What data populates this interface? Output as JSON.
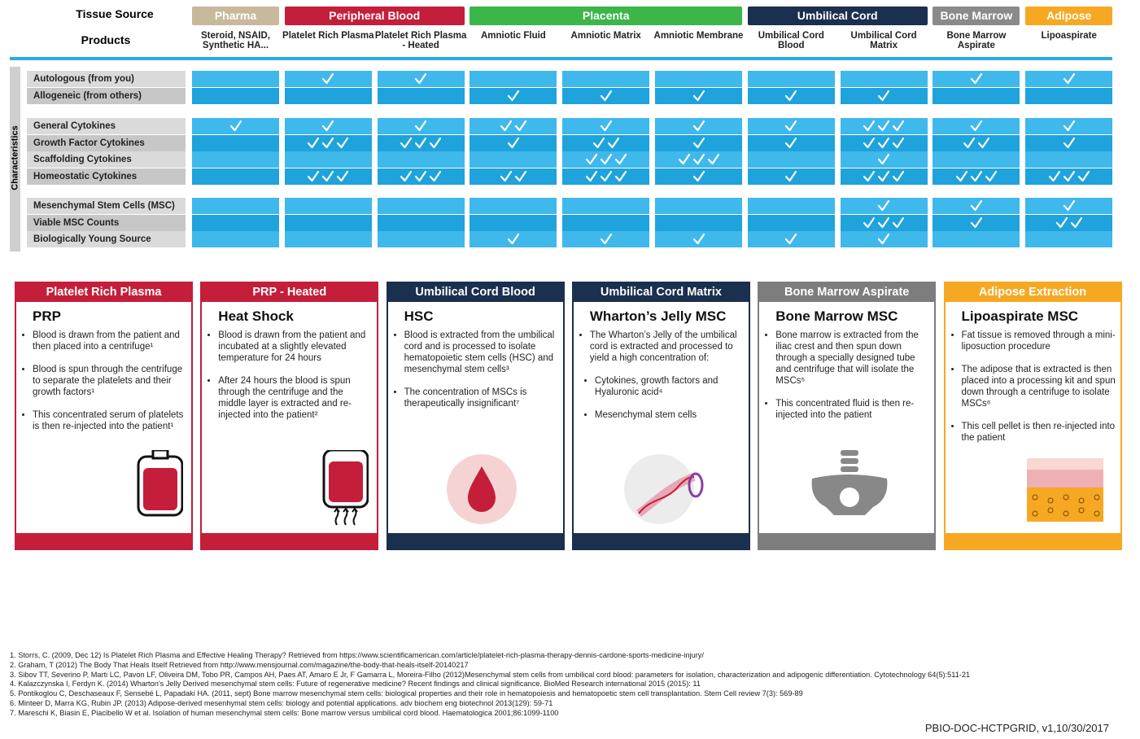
{
  "header": {
    "tissue_source_label": "Tissue Source",
    "products_label": "Products",
    "characteristics_label": "Characteristics"
  },
  "tissue_sources": [
    {
      "name": "Pharma",
      "color": "#c8b89c",
      "products": [
        "Steroid, NSAID, Synthetic HA..."
      ]
    },
    {
      "name": "Peripheral Blood",
      "color": "#c41e3a",
      "products": [
        "Platelet Rich Plasma",
        "Platelet Rich Plasma - Heated"
      ]
    },
    {
      "name": "Placenta",
      "color": "#3cb54a",
      "products": [
        "Amniotic Fluid",
        "Amniotic Matrix",
        "Amniotic Membrane"
      ]
    },
    {
      "name": "Umbilical Cord",
      "color": "#1b2f4e",
      "products": [
        "Umbilical Cord Blood",
        "Umbilical Cord Matrix"
      ]
    },
    {
      "name": "Bone Marrow",
      "color": "#8a8a8a",
      "products": [
        "Bone Marrow Aspirate"
      ]
    },
    {
      "name": "Adipose",
      "color": "#f7a823",
      "products": [
        "Lipoaspirate"
      ]
    }
  ],
  "characteristic_groups": [
    [
      {
        "label": "Autologous (from you)",
        "checks": [
          0,
          1,
          1,
          0,
          0,
          0,
          0,
          0,
          1,
          1
        ]
      },
      {
        "label": "Allogeneic (from others)",
        "checks": [
          0,
          0,
          0,
          1,
          1,
          1,
          1,
          1,
          0,
          0
        ]
      }
    ],
    [
      {
        "label": "General Cytokines",
        "checks": [
          1,
          1,
          1,
          2,
          1,
          1,
          1,
          3,
          1,
          1
        ]
      },
      {
        "label": "Growth Factor Cytokines",
        "checks": [
          0,
          3,
          3,
          1,
          2,
          1,
          1,
          3,
          2,
          1
        ]
      },
      {
        "label": "Scaffolding Cytokines",
        "checks": [
          0,
          0,
          0,
          0,
          3,
          3,
          0,
          1,
          0,
          0
        ]
      },
      {
        "label": "Homeostatic Cytokines",
        "checks": [
          0,
          3,
          3,
          2,
          3,
          1,
          1,
          3,
          3,
          3
        ]
      }
    ],
    [
      {
        "label": "Mesenchymal Stem Cells (MSC)",
        "checks": [
          0,
          0,
          0,
          0,
          0,
          0,
          0,
          1,
          1,
          1
        ]
      },
      {
        "label": "Viable MSC Counts",
        "checks": [
          0,
          0,
          0,
          0,
          0,
          0,
          0,
          3,
          1,
          2
        ]
      },
      {
        "label": "Biologically Young Source",
        "checks": [
          0,
          0,
          0,
          1,
          1,
          1,
          1,
          1,
          0,
          0
        ]
      }
    ]
  ],
  "cards": [
    {
      "header": "Platelet Rich Plasma",
      "color": "#c41e3a",
      "title": "PRP",
      "bullets": [
        "Blood is drawn from the patient and then placed into a centrifuge¹",
        "Blood is spun through the centrifuge to separate the platelets and their growth factors¹",
        "This concentrated serum of platelets is then re-injected into the patient¹"
      ]
    },
    {
      "header": "PRP - Heated",
      "color": "#c41e3a",
      "title": "Heat Shock",
      "bullets": [
        "Blood is drawn from the patient and incubated at a slightly elevated temperature for 24 hours",
        "After 24 hours the blood is spun through the centrifuge and the middle layer is extracted and re-injected into the patient²"
      ]
    },
    {
      "header": "Umbilical Cord Blood",
      "color": "#1b2f4e",
      "title": "HSC",
      "bullets": [
        "Blood is extracted from the umbilical cord and is processed to isolate hematopoietic stem cells (HSC) and mesenchymal stem cells³",
        "The  concentration of MSCs is therapeutically insignificant⁷"
      ]
    },
    {
      "header": "Umbilical Cord Matrix",
      "color": "#1b2f4e",
      "title": "Wharton’s Jelly MSC",
      "bullets": [
        "The Wharton’s Jelly of the umbilical cord is extracted and processed to yield a high concentration of:"
      ],
      "sub_bullets": [
        "Cytokines, growth factors and Hyaluronic acid⁴",
        "Mesenchymal stem cells"
      ]
    },
    {
      "header": "Bone Marrow Aspirate",
      "color": "#7d7d7d",
      "title": "Bone Marrow MSC",
      "bullets": [
        "Bone marrow is extracted from the iliac crest and then spun down through a specially designed tube and centrifuge that will isolate the MSCs⁵",
        "This concentrated fluid is then re-injected into the patient"
      ]
    },
    {
      "header": "Adipose Extraction",
      "color": "#f7a823",
      "title": "Lipoaspirate MSC",
      "bullets": [
        "Fat tissue is removed through a mini-liposuction procedure",
        "The adipose that is extracted is then placed into a processing kit and spun down through a centrifuge to isolate MSCs⁶",
        "This cell pellet is then re-injected into the patient"
      ]
    }
  ],
  "references": [
    "1. Storrs, C. (2009, Dec 12) Is Platelet Rich Plasma and Effective Healing Therapy?  Retrieved from https://www.scientificamerican.com/article/platelet-rich-plasma-therapy-dennis-cardone-sports-medicine-injury/",
    "2. Graham, T (2012) The Body That Heals Itself Retrieved from http://www.mensjournal.com/magazine/the-body-that-heals-itself-20140217",
    "3. Sibov TT, Severino P, Marti LC, Pavon LF, Oliveira DM, Tobo PR, Campos AH, Paes AT, Amaro E Jr, F Gamarra L, Moreira-Filho (2012)Mesenchymal stem cells from umbilical cord blood: parameters for isolation, characterization and adipogenic differentiation. Cytotechnology 64(5):511-21",
    "4. Kalazczynska I, Ferdyn K. (2014) Wharton’s Jelly Derived mesenchymal stem cells: Future of regenerative medicine? Recent findings and clinical significance. BioMed Research international 2015 (2015): 11",
    "5. Pontikoglou C, Deschaseaux F, Sensebé L, Papadaki HA. (2011, sept) Bone marrow mesenchymal stem cells: biological properties and their role in hematopoiesis and hematopoetic stem cell transplantation. Stem Cell review 7(3): 569-89",
    "6. Minteer D, Marra KG, Rubin JP. (2013) Adipose-derived mesenhymal stem cells: biology and potential applications. adv biochem eng biotechnol 2013(129):  59-71",
    "7. Mareschi K, Biasin E, Piacibello W et al. Isolation of human mesenchymal stem cells: Bone marrow versus umbilical cord blood. Haematologica 2001;86:1099-1100"
  ],
  "footer": {
    "document_id": "PBIO-DOC-HCTPGRID, v1,10/30/2017"
  }
}
